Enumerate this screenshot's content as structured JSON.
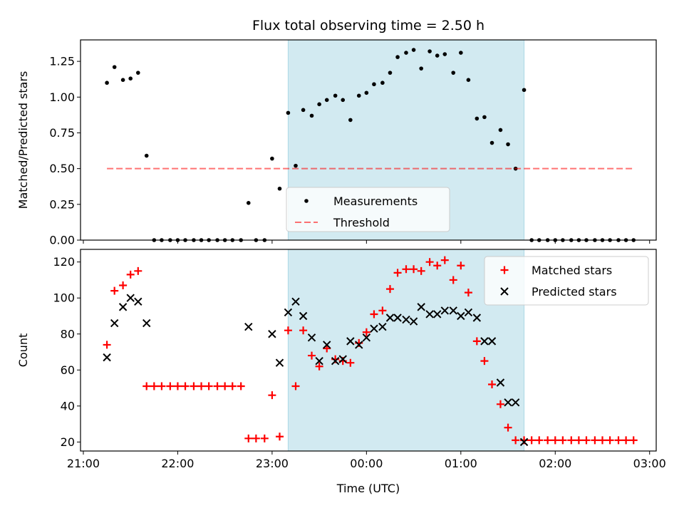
{
  "title": "Flux total observing time = 2.50 h",
  "xlabel": "Time (UTC)",
  "colors": {
    "shade": "#add8e6",
    "measurements": "#000000",
    "threshold": "#ff0000",
    "matched": "#ff0000",
    "predicted": "#000000"
  },
  "chart_data": [
    {
      "type": "scatter",
      "ylabel": "Matched/Predicted stars",
      "xlim": [
        20.97,
        27.07
      ],
      "ylim": [
        0,
        1.4
      ],
      "yticks": [
        0.0,
        0.25,
        0.5,
        0.75,
        1.0,
        1.25
      ],
      "ytick_labels": [
        "0.00",
        "0.25",
        "0.50",
        "0.75",
        "1.00",
        "1.25"
      ],
      "observing_window": [
        23.17,
        25.67
      ],
      "legend": {
        "position": "bottom-center",
        "entries": [
          "Measurements",
          "Threshold"
        ]
      },
      "series": [
        {
          "name": "Measurements",
          "marker": "dot",
          "x": [
            21.25,
            21.33,
            21.42,
            21.5,
            21.58,
            21.67,
            21.75,
            21.83,
            21.92,
            22.0,
            22.08,
            22.17,
            22.25,
            22.33,
            22.42,
            22.5,
            22.58,
            22.67,
            22.75,
            22.83,
            22.92,
            23.0,
            23.08,
            23.17,
            23.25,
            23.33,
            23.42,
            23.5,
            23.58,
            23.67,
            23.75,
            23.83,
            23.92,
            24.0,
            24.08,
            24.17,
            24.25,
            24.33,
            24.42,
            24.5,
            24.58,
            24.67,
            24.75,
            24.83,
            24.92,
            25.0,
            25.08,
            25.17,
            25.25,
            25.33,
            25.42,
            25.5,
            25.58,
            25.67,
            25.75,
            25.83,
            25.92,
            26.0,
            26.08,
            26.17,
            26.25,
            26.33,
            26.42,
            26.5,
            26.58,
            26.67,
            26.75,
            26.83
          ],
          "y": [
            1.1,
            1.21,
            1.12,
            1.13,
            1.17,
            0.59,
            0,
            0,
            0,
            0,
            0,
            0,
            0,
            0,
            0,
            0,
            0,
            0,
            0.26,
            0,
            0,
            0.57,
            0.36,
            0.89,
            0.52,
            0.91,
            0.87,
            0.95,
            0.98,
            1.01,
            0.98,
            0.84,
            1.01,
            1.03,
            1.09,
            1.1,
            1.17,
            1.28,
            1.31,
            1.33,
            1.2,
            1.32,
            1.29,
            1.3,
            1.17,
            1.31,
            1.12,
            0.85,
            0.86,
            0.68,
            0.77,
            0.67,
            0.5,
            1.05,
            0,
            0,
            0,
            0,
            0,
            0,
            0,
            0,
            0,
            0,
            0,
            0,
            0,
            0
          ]
        },
        {
          "name": "Threshold",
          "marker": "dashed-line",
          "x": [
            21.25,
            26.83
          ],
          "y": [
            0.5,
            0.5
          ]
        }
      ]
    },
    {
      "type": "scatter",
      "ylabel": "Count",
      "xlim": [
        20.97,
        27.07
      ],
      "ylim": [
        15,
        127
      ],
      "yticks": [
        20,
        40,
        60,
        80,
        100,
        120
      ],
      "ytick_labels": [
        "20",
        "40",
        "60",
        "80",
        "100",
        "120"
      ],
      "xticks": [
        21,
        22,
        23,
        24,
        25,
        26,
        27
      ],
      "xtick_labels": [
        "21:00",
        "22:00",
        "23:00",
        "00:00",
        "01:00",
        "02:00",
        "03:00"
      ],
      "observing_window": [
        23.17,
        25.67
      ],
      "legend": {
        "position": "top-right",
        "entries": [
          "Matched stars",
          "Predicted stars"
        ]
      },
      "series": [
        {
          "name": "Matched stars",
          "marker": "plus",
          "x": [
            21.25,
            21.33,
            21.42,
            21.5,
            21.58,
            21.67,
            21.75,
            21.83,
            21.92,
            22.0,
            22.08,
            22.17,
            22.25,
            22.33,
            22.42,
            22.5,
            22.58,
            22.67,
            22.75,
            22.83,
            22.92,
            23.0,
            23.08,
            23.17,
            23.25,
            23.33,
            23.42,
            23.5,
            23.58,
            23.67,
            23.75,
            23.83,
            23.92,
            24.0,
            24.08,
            24.17,
            24.25,
            24.33,
            24.42,
            24.5,
            24.58,
            24.67,
            24.75,
            24.83,
            24.92,
            25.0,
            25.08,
            25.17,
            25.25,
            25.33,
            25.42,
            25.5,
            25.58,
            25.67,
            25.75,
            25.83,
            25.92,
            26.0,
            26.08,
            26.17,
            26.25,
            26.33,
            26.42,
            26.5,
            26.58,
            26.67,
            26.75,
            26.83
          ],
          "y": [
            74,
            104,
            107,
            113,
            115,
            51,
            51,
            51,
            51,
            51,
            51,
            51,
            51,
            51,
            51,
            51,
            51,
            51,
            22,
            22,
            22,
            46,
            23,
            82,
            51,
            82,
            68,
            62,
            72,
            66,
            65,
            64,
            75,
            81,
            91,
            93,
            105,
            114,
            116,
            116,
            115,
            120,
            118,
            121,
            110,
            118,
            103,
            76,
            65,
            52,
            41,
            28,
            21,
            21,
            21,
            21,
            21,
            21,
            21,
            21,
            21,
            21,
            21,
            21,
            21,
            21,
            21,
            21
          ]
        },
        {
          "name": "Predicted stars",
          "marker": "x",
          "x": [
            21.25,
            21.33,
            21.42,
            21.5,
            21.58,
            21.67,
            22.75,
            23.0,
            23.08,
            23.17,
            23.25,
            23.33,
            23.42,
            23.5,
            23.58,
            23.67,
            23.75,
            23.83,
            23.92,
            24.0,
            24.08,
            24.17,
            24.25,
            24.33,
            24.42,
            24.5,
            24.58,
            24.67,
            24.75,
            24.83,
            24.92,
            25.0,
            25.08,
            25.17,
            25.25,
            25.33,
            25.42,
            25.5,
            25.58,
            25.67
          ],
          "y": [
            67,
            86,
            95,
            100,
            98,
            86,
            84,
            80,
            64,
            92,
            98,
            90,
            78,
            65,
            74,
            65,
            66,
            76,
            74,
            78,
            83,
            84,
            89,
            89,
            88,
            87,
            95,
            91,
            91,
            93,
            93,
            90,
            92,
            89,
            76,
            76,
            53,
            42,
            42,
            20
          ]
        }
      ]
    }
  ]
}
